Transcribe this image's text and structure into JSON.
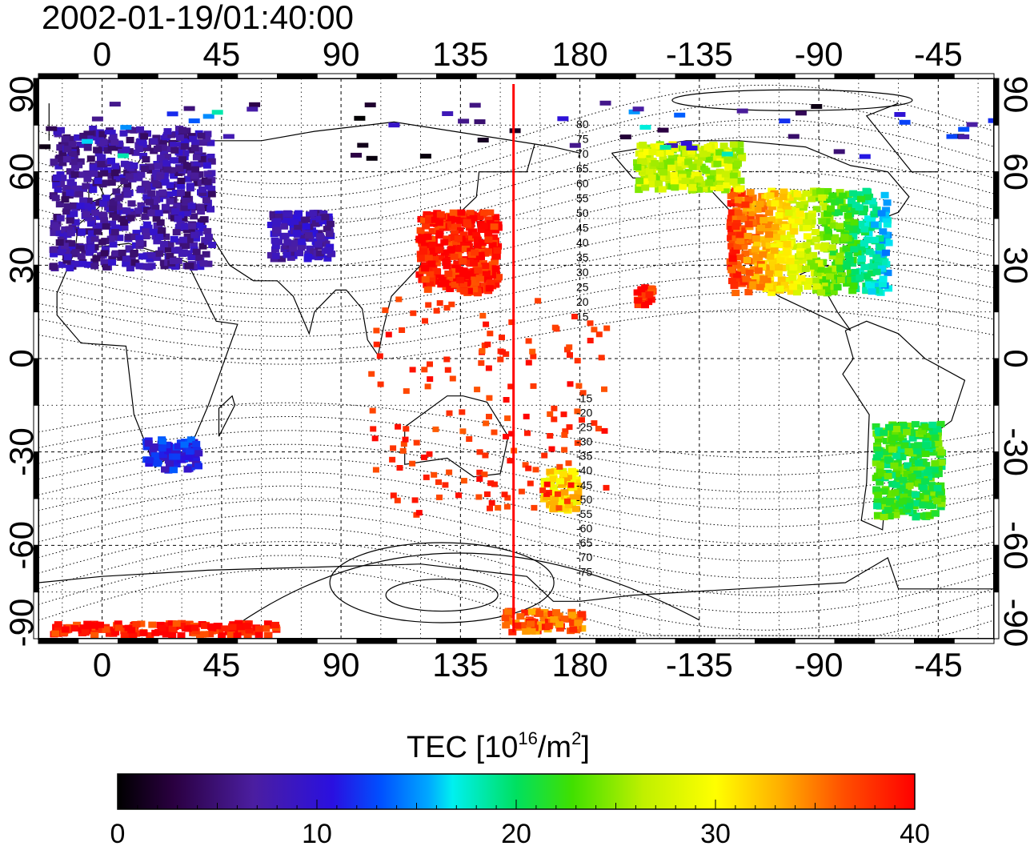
{
  "title": "2002-01-19/01:40:00",
  "lon_ticks": [
    "0",
    "45",
    "90",
    "135",
    "180",
    "-135",
    "-90",
    "-45"
  ],
  "lat_ticks": [
    "90",
    "60",
    "30",
    "0",
    "-30",
    "-60",
    "-90"
  ],
  "mlat_labels_north": [
    "80",
    "75",
    "70",
    "65",
    "60",
    "55",
    "50",
    "45",
    "40",
    "35",
    "30",
    "25",
    "20",
    "15"
  ],
  "mlat_labels_south": [
    "-15",
    "-20",
    "-25",
    "-30",
    "-35",
    "-40",
    "-45",
    "-50",
    "-55",
    "-60",
    "-65",
    "-70",
    "-75"
  ],
  "colorbar": {
    "title_main": "TEC  [10",
    "title_exp1": "16",
    "title_mid": "/m",
    "title_exp2": "2",
    "title_end": "]",
    "ticks": [
      "0",
      "10",
      "20",
      "30",
      "40"
    ],
    "min": 0,
    "max": 40
  },
  "map_data": {
    "projection": "equirectangular, lon -24..336, lat -90..90",
    "terminator_line_lon": 155,
    "tec_units": "10^16/m^2",
    "regions": [
      {
        "name": "europe",
        "lon": [
          -20,
          40
        ],
        "lat": [
          30,
          75
        ],
        "tec": 7
      },
      {
        "name": "central-asia",
        "lon": [
          62,
          85
        ],
        "lat": [
          33,
          48
        ],
        "tec": 8
      },
      {
        "name": "east-asia",
        "lon": [
          118,
          148
        ],
        "lat": [
          22,
          48
        ],
        "tec": 39
      },
      {
        "name": "north-america",
        "lon": [
          -125,
          -65
        ],
        "lat": [
          22,
          55
        ],
        "tec": 24
      },
      {
        "name": "alaska-canada",
        "lon": [
          -160,
          -120
        ],
        "lat": [
          55,
          70
        ],
        "tec": 27
      },
      {
        "name": "southern-africa",
        "lon": [
          15,
          35
        ],
        "lat": [
          -35,
          -25
        ],
        "tec": 11
      },
      {
        "name": "new-zealand",
        "lon": [
          165,
          178
        ],
        "lat": [
          -48,
          -35
        ],
        "tec": 31
      },
      {
        "name": "hawaii",
        "lon": [
          -160,
          -154
        ],
        "lat": [
          18,
          24
        ],
        "tec": 39
      },
      {
        "name": "south-america",
        "lon": [
          -70,
          -45
        ],
        "lat": [
          -50,
          -20
        ],
        "tec": 22
      },
      {
        "name": "antarctica-east",
        "lon": [
          -20,
          65
        ],
        "lat": [
          -88,
          -84
        ],
        "tec": 39
      },
      {
        "name": "antarctica-ross",
        "lon": [
          150,
          180
        ],
        "lat": [
          -87,
          -80
        ],
        "tec": 36
      }
    ]
  }
}
